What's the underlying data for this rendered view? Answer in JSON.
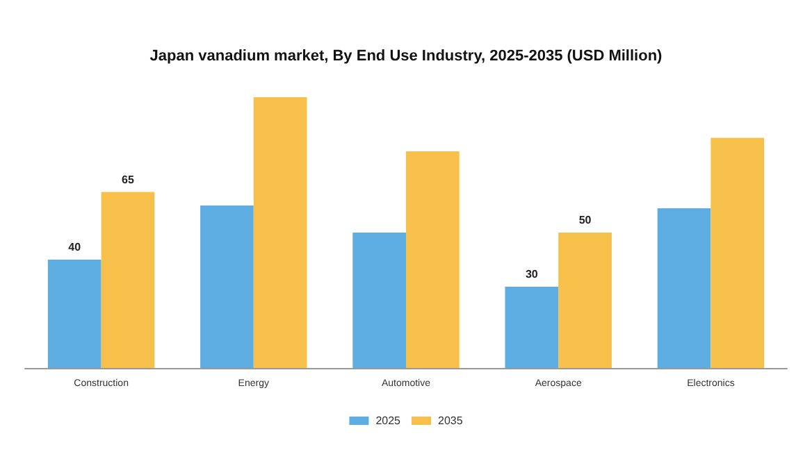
{
  "chart_data": {
    "type": "bar",
    "title": "Japan vanadium market, By End Use Industry, 2025-2035 (USD Million)",
    "categories": [
      "Construction",
      "Energy",
      "Automotive",
      "Aerospace",
      "Electronics"
    ],
    "series": [
      {
        "name": "2025",
        "color": "#5dade2",
        "values": [
          40,
          60,
          50,
          30,
          59
        ],
        "value_labels": [
          "40",
          null,
          null,
          "30",
          null
        ]
      },
      {
        "name": "2035",
        "color": "#f7c04a",
        "values": [
          65,
          100,
          80,
          50,
          85
        ],
        "value_labels": [
          "65",
          null,
          null,
          "50",
          null
        ]
      }
    ],
    "legend": "bottom",
    "grid": false
  }
}
